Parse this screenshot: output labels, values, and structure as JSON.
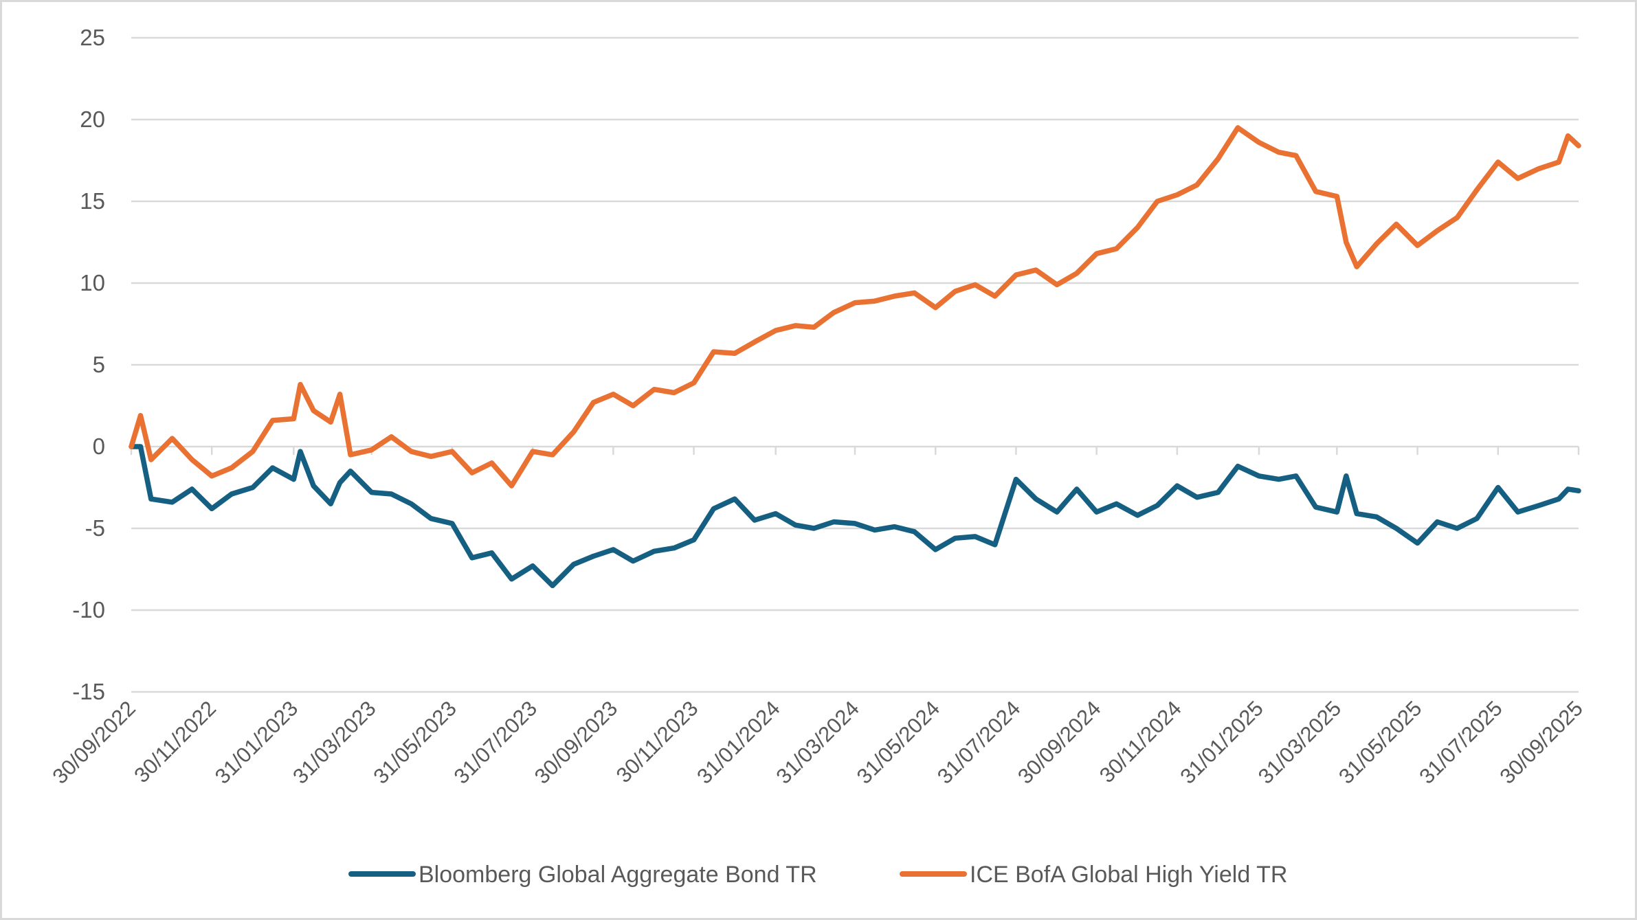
{
  "chart_data": {
    "type": "line",
    "title": "",
    "xlabel": "",
    "ylabel": "",
    "ylim": [
      -15,
      25
    ],
    "yticks": [
      25,
      20,
      15,
      10,
      5,
      0,
      -5,
      -10,
      -15
    ],
    "ytick_labels": [
      "25",
      "20",
      "15",
      "10",
      "5",
      "0",
      "-5",
      "-10",
      "-15"
    ],
    "xlim": [
      "2022-09-30",
      "2025-09-30"
    ],
    "xtick_labels": [
      "30/09/2022",
      "30/11/2022",
      "31/01/2023",
      "31/03/2023",
      "31/05/2023",
      "31/07/2023",
      "30/09/2023",
      "30/11/2023",
      "31/01/2024",
      "31/03/2024",
      "31/05/2024",
      "31/07/2024",
      "30/09/2024",
      "30/11/2024",
      "31/01/2025",
      "31/03/2025",
      "31/05/2025",
      "31/07/2025",
      "30/09/2025"
    ],
    "xtick_dates": [
      "2022-09-30",
      "2022-11-30",
      "2023-01-31",
      "2023-03-31",
      "2023-05-31",
      "2023-07-31",
      "2023-09-30",
      "2023-11-30",
      "2024-01-31",
      "2024-03-31",
      "2024-05-31",
      "2024-07-31",
      "2024-09-30",
      "2024-11-30",
      "2025-01-31",
      "2025-03-31",
      "2025-05-31",
      "2025-07-31",
      "2025-09-30"
    ],
    "grid": true,
    "legend_position": "bottom",
    "x": [
      "2022-09-30",
      "2022-10-07",
      "2022-10-15",
      "2022-10-31",
      "2022-11-15",
      "2022-11-30",
      "2022-12-15",
      "2022-12-31",
      "2023-01-15",
      "2023-01-31",
      "2023-02-05",
      "2023-02-15",
      "2023-02-28",
      "2023-03-07",
      "2023-03-15",
      "2023-03-31",
      "2023-04-15",
      "2023-04-30",
      "2023-05-15",
      "2023-05-31",
      "2023-06-15",
      "2023-06-30",
      "2023-07-15",
      "2023-07-31",
      "2023-08-15",
      "2023-08-31",
      "2023-09-15",
      "2023-09-30",
      "2023-10-15",
      "2023-10-31",
      "2023-11-15",
      "2023-11-30",
      "2023-12-15",
      "2023-12-31",
      "2024-01-15",
      "2024-01-31",
      "2024-02-15",
      "2024-02-29",
      "2024-03-15",
      "2024-03-31",
      "2024-04-15",
      "2024-04-30",
      "2024-05-15",
      "2024-05-31",
      "2024-06-15",
      "2024-06-30",
      "2024-07-15",
      "2024-07-31",
      "2024-08-15",
      "2024-08-31",
      "2024-09-15",
      "2024-09-30",
      "2024-10-15",
      "2024-10-31",
      "2024-11-15",
      "2024-11-30",
      "2024-12-15",
      "2024-12-31",
      "2025-01-15",
      "2025-01-31",
      "2025-02-15",
      "2025-02-28",
      "2025-03-15",
      "2025-03-31",
      "2025-04-07",
      "2025-04-15",
      "2025-04-30",
      "2025-05-15",
      "2025-05-31",
      "2025-06-15",
      "2025-06-30",
      "2025-07-15",
      "2025-07-31",
      "2025-08-15",
      "2025-08-31",
      "2025-09-15",
      "2025-09-22",
      "2025-09-30"
    ],
    "series": [
      {
        "name": "Bloomberg Global Aggregate Bond TR",
        "color": "#156082",
        "values": [
          0.0,
          0.0,
          -3.2,
          -3.4,
          -2.6,
          -3.8,
          -2.9,
          -2.5,
          -1.3,
          -2.0,
          -0.3,
          -2.4,
          -3.5,
          -2.2,
          -1.5,
          -2.8,
          -2.9,
          -3.5,
          -4.4,
          -4.7,
          -6.8,
          -6.5,
          -8.1,
          -7.3,
          -8.5,
          -7.2,
          -6.7,
          -6.3,
          -7.0,
          -6.4,
          -6.2,
          -5.7,
          -3.8,
          -3.2,
          -4.5,
          -4.1,
          -4.8,
          -5.0,
          -4.6,
          -4.7,
          -5.1,
          -4.9,
          -5.2,
          -6.3,
          -5.6,
          -5.5,
          -6.0,
          -2.0,
          -3.2,
          -4.0,
          -2.6,
          -4.0,
          -3.5,
          -4.2,
          -3.6,
          -2.4,
          -3.1,
          -2.8,
          -1.2,
          -1.8,
          -2.0,
          -1.8,
          -3.7,
          -4.0,
          -1.8,
          -4.1,
          -4.3,
          -5.0,
          -5.9,
          -4.6,
          -5.0,
          -4.4,
          -2.5,
          -4.0,
          -3.6,
          -3.2,
          -2.6,
          -2.7
        ]
      },
      {
        "name": "ICE BofA Global High Yield TR",
        "color": "#E97132",
        "values": [
          0.0,
          1.9,
          -0.8,
          0.5,
          -0.8,
          -1.8,
          -1.3,
          -0.3,
          1.6,
          1.7,
          3.8,
          2.2,
          1.5,
          3.2,
          -0.5,
          -0.2,
          0.6,
          -0.3,
          -0.6,
          -0.3,
          -1.6,
          -1.0,
          -2.4,
          -0.3,
          -0.5,
          0.9,
          2.7,
          3.2,
          2.5,
          3.5,
          3.3,
          3.9,
          5.8,
          5.7,
          6.4,
          7.1,
          7.4,
          7.3,
          8.2,
          8.8,
          8.9,
          9.2,
          9.4,
          8.5,
          9.5,
          9.9,
          9.2,
          10.5,
          10.8,
          9.9,
          10.6,
          11.8,
          12.1,
          13.4,
          15.0,
          15.4,
          16.0,
          17.6,
          19.5,
          18.6,
          18.0,
          17.8,
          15.6,
          15.3,
          12.5,
          11.0,
          12.4,
          13.6,
          12.3,
          13.2,
          14.0,
          15.7,
          17.4,
          16.4,
          17.0,
          17.4,
          19.0,
          18.4
        ]
      }
    ],
    "gridline_color": "#D9D9D9"
  }
}
